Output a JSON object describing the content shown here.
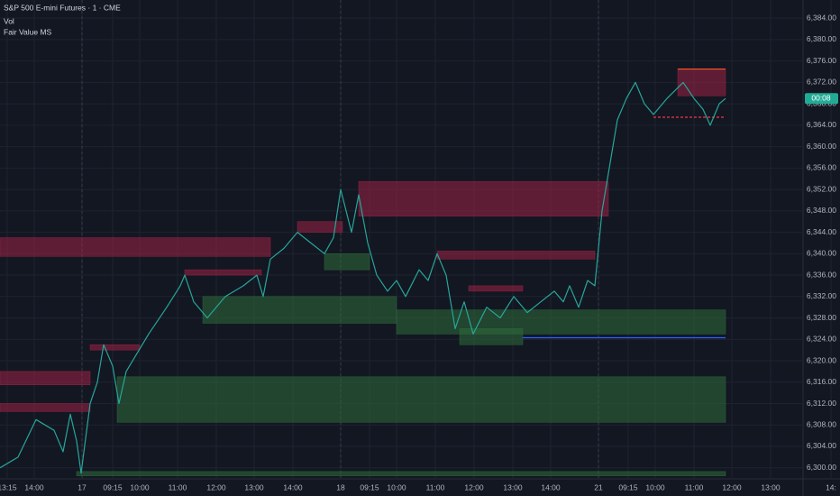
{
  "chart_data": {
    "type": "line",
    "title": "S&P 500 E-mini Futures · 1 · CME",
    "indicators": [
      "Vol",
      "Fair Value MS"
    ],
    "x": [
      0,
      10,
      20,
      40,
      60,
      70,
      78,
      85,
      90,
      100,
      108,
      115,
      125,
      132,
      140,
      165,
      185,
      200,
      205,
      215,
      230,
      250,
      270,
      285,
      292,
      300,
      315,
      330,
      345,
      360,
      370,
      378,
      390,
      398,
      408,
      418,
      430,
      440,
      450,
      465,
      475,
      485,
      495,
      505,
      515,
      525,
      540,
      555,
      570,
      585,
      600,
      615,
      625,
      632,
      642,
      652,
      660,
      668,
      676,
      685,
      695,
      705,
      715,
      725,
      740,
      752,
      758,
      770,
      780,
      788,
      798,
      805
    ],
    "series": [
      {
        "color": "#26a69a",
        "values": [
          6300,
          6301,
          6302,
          6309,
          6307,
          6303,
          6310,
          6305,
          6299,
          6312,
          6316,
          6323,
          6319,
          6312,
          6318,
          6325,
          6330,
          6334,
          6336,
          6331,
          6328,
          6332,
          6334,
          6336,
          6332,
          6339,
          6341,
          6344,
          6342,
          6340,
          6343,
          6352,
          6344,
          6351,
          6342,
          6336,
          6333,
          6335,
          6332,
          6337,
          6335,
          6340,
          6336,
          6326,
          6331,
          6325,
          6330,
          6328,
          6332,
          6329,
          6331,
          6333,
          6331,
          6334,
          6330,
          6335,
          6334,
          6348,
          6356,
          6365,
          6369,
          6372,
          6368,
          6366,
          6369,
          6371,
          6372,
          6369,
          6367,
          6364,
          6368,
          6369
        ]
      }
    ],
    "last_price_label": "00:08",
    "last_price_color": "#22ab94",
    "zones": [
      {
        "x": [
          0,
          100
        ],
        "y": [
          6318,
          6315.5
        ],
        "color": "#9c2244"
      },
      {
        "x": [
          0,
          100
        ],
        "y": [
          6312,
          6310.5
        ],
        "color": "#9c2244"
      },
      {
        "x": [
          0,
          300
        ],
        "y": [
          6343,
          6339.5
        ],
        "color": "#9c2244"
      },
      {
        "x": [
          100,
          155
        ],
        "y": [
          6323,
          6322
        ],
        "color": "#9c2244"
      },
      {
        "x": [
          205,
          290
        ],
        "y": [
          6337,
          6336
        ],
        "color": "#9c2244"
      },
      {
        "x": [
          330,
          380
        ],
        "y": [
          6346,
          6344
        ],
        "color": "#9c2244"
      },
      {
        "x": [
          398,
          675
        ],
        "y": [
          6353.5,
          6347
        ],
        "color": "#9c2244"
      },
      {
        "x": [
          485,
          660
        ],
        "y": [
          6340.5,
          6339
        ],
        "color": "#9c2244"
      },
      {
        "x": [
          520,
          580
        ],
        "y": [
          6334,
          6333
        ],
        "color": "#9c2244"
      },
      {
        "x": [
          752,
          805
        ],
        "y": [
          6374.5,
          6369.5
        ],
        "color": "#9c2244"
      },
      {
        "x": [
          130,
          805
        ],
        "y": [
          6317,
          6308.5
        ],
        "color": "#2e6b3a"
      },
      {
        "x": [
          225,
          440
        ],
        "y": [
          6332,
          6327
        ],
        "color": "#2e6b3a"
      },
      {
        "x": [
          360,
          410
        ],
        "y": [
          6340,
          6337
        ],
        "color": "#2e6b3a"
      },
      {
        "x": [
          440,
          805
        ],
        "y": [
          6329.5,
          6325
        ],
        "color": "#2e6b3a"
      },
      {
        "x": [
          510,
          580
        ],
        "y": [
          6326,
          6323
        ],
        "color": "#2e6b3a"
      },
      {
        "x": [
          85,
          805
        ],
        "y": [
          6299.3,
          6298.5
        ],
        "color": "#2e6b3a"
      }
    ],
    "levels": [
      {
        "x": [
          580,
          805
        ],
        "y": 6324.3,
        "color": "#2962ff",
        "dashed": false
      },
      {
        "x": [
          752,
          805
        ],
        "y": 6374.5,
        "color": "#ff5722",
        "dashed": false
      },
      {
        "x": [
          725,
          805
        ],
        "y": 6365.5,
        "color": "#f23645",
        "dashed": true
      }
    ],
    "xlim": [
      0,
      890
    ],
    "xticks": [
      {
        "value": 8,
        "label": "13:15"
      },
      {
        "value": 38,
        "label": "14:00"
      },
      {
        "value": 91,
        "label": "17"
      },
      {
        "value": 125,
        "label": "09:15"
      },
      {
        "value": 155,
        "label": "10:00"
      },
      {
        "value": 197,
        "label": "11:00"
      },
      {
        "value": 240,
        "label": "12:00"
      },
      {
        "value": 282,
        "label": "13:00"
      },
      {
        "value": 325,
        "label": "14:00"
      },
      {
        "value": 378,
        "label": "18"
      },
      {
        "value": 410,
        "label": "09:15"
      },
      {
        "value": 440,
        "label": "10:00"
      },
      {
        "value": 483,
        "label": "11:00"
      },
      {
        "value": 526,
        "label": "12:00"
      },
      {
        "value": 569,
        "label": "13:00"
      },
      {
        "value": 611,
        "label": "14:00"
      },
      {
        "value": 664,
        "label": "21"
      },
      {
        "value": 697,
        "label": "09:15"
      },
      {
        "value": 727,
        "label": "10:00"
      },
      {
        "value": 770,
        "label": "11:00"
      },
      {
        "value": 812,
        "label": "12:00"
      },
      {
        "value": 855,
        "label": "13:00"
      },
      {
        "value": 922,
        "label": "14:"
      }
    ],
    "ylim": [
      6298.1,
      6387.4
    ],
    "yticks": [
      {
        "value": 6300,
        "label": "6,300.00"
      },
      {
        "value": 6304,
        "label": "6,304.00"
      },
      {
        "value": 6308,
        "label": "6,308.00"
      },
      {
        "value": 6312,
        "label": "6,312.00"
      },
      {
        "value": 6316,
        "label": "6,316.00"
      },
      {
        "value": 6320,
        "label": "6,320.00"
      },
      {
        "value": 6324,
        "label": "6,324.00"
      },
      {
        "value": 6328,
        "label": "6,328.00"
      },
      {
        "value": 6332,
        "label": "6,332.00"
      },
      {
        "value": 6336,
        "label": "6,336.00"
      },
      {
        "value": 6340,
        "label": "6,340.00"
      },
      {
        "value": 6344,
        "label": "6,344.00"
      },
      {
        "value": 6348,
        "label": "6,348.00"
      },
      {
        "value": 6352,
        "label": "6,352.00"
      },
      {
        "value": 6356,
        "label": "6,356.00"
      },
      {
        "value": 6360,
        "label": "6,360.00"
      },
      {
        "value": 6364,
        "label": "6,364.00"
      },
      {
        "value": 6368,
        "label": "6,368.00"
      },
      {
        "value": 6372,
        "label": "6,372.00"
      },
      {
        "value": 6376,
        "label": "6,376.00"
      },
      {
        "value": 6380,
        "label": "6,380.00"
      },
      {
        "value": 6384,
        "label": "6,384.00"
      }
    ],
    "grid": true
  }
}
